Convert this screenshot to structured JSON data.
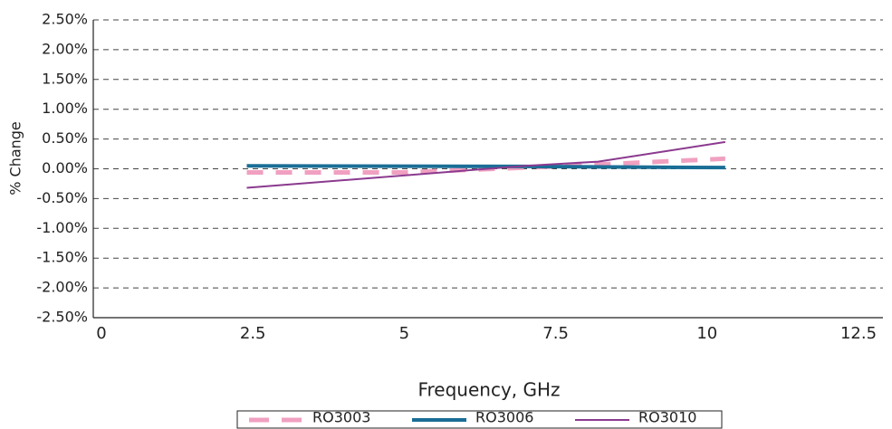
{
  "chart_data": {
    "type": "line",
    "x_label": "Frequency, GHz",
    "y_label": "% Change",
    "xlim": [
      0,
      12.5
    ],
    "xticks": [
      0,
      2.5,
      5,
      7.5,
      10,
      12.5
    ],
    "ylim": [
      -2.5,
      2.5
    ],
    "yticks": [
      {
        "value": 2.5,
        "label": "2.50%"
      },
      {
        "value": 2.0,
        "label": "2.00%"
      },
      {
        "value": 1.5,
        "label": "1.50%"
      },
      {
        "value": 1.0,
        "label": "1.00%"
      },
      {
        "value": 0.5,
        "label": "0.50%"
      },
      {
        "value": 0.0,
        "label": "0.00%"
      },
      {
        "value": -0.5,
        "label": "-0.50%"
      },
      {
        "value": -1.0,
        "label": "-1.00%"
      },
      {
        "value": -1.5,
        "label": "-1.50%"
      },
      {
        "value": -2.0,
        "label": "-2.00%"
      },
      {
        "value": -2.5,
        "label": "-2.50%"
      }
    ],
    "grid": true,
    "series": [
      {
        "name": "RO3003",
        "color": "#f0a0c0",
        "dash": true,
        "width": 5,
        "x": [
          2.4,
          5,
          7.5,
          10.3
        ],
        "values": [
          -0.06,
          -0.06,
          0.04,
          0.17
        ]
      },
      {
        "name": "RO3006",
        "color": "#1a6e96",
        "dash": false,
        "width": 4,
        "x": [
          2.4,
          7,
          10.3
        ],
        "values": [
          0.05,
          0.04,
          0.02
        ]
      },
      {
        "name": "RO3010",
        "color": "#8b3a8f",
        "dash": false,
        "width": 2,
        "x": [
          2.4,
          7,
          8.2,
          10.3
        ],
        "values": [
          -0.32,
          0.05,
          0.12,
          0.45
        ]
      }
    ]
  }
}
